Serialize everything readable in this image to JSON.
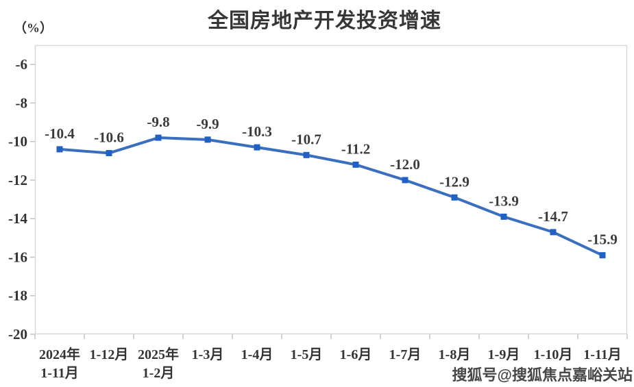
{
  "header": {
    "title": "全国房地产开发投资增速",
    "unit_label": "（%）"
  },
  "chart": {
    "colors": {
      "line": "#3a6fc0",
      "marker": "#2160c4",
      "axis_border": "#d6d6d6",
      "tick_mark": "#bfbfbf",
      "label_text": "#333333"
    }
  },
  "chart_data": {
    "type": "line",
    "title": "全国房地产开发投资增速",
    "ylabel": "（%）",
    "xlabel": "",
    "categories": [
      "2024年\n1-11月",
      "1-12月",
      "2025年\n1-2月",
      "1-3月",
      "1-4月",
      "1-5月",
      "1-6月",
      "1-7月",
      "1-8月",
      "1-9月",
      "1-10月",
      "1-11月"
    ],
    "values": [
      -10.4,
      -10.6,
      -9.8,
      -9.9,
      -10.3,
      -10.7,
      -11.2,
      -12.0,
      -12.9,
      -13.9,
      -14.7,
      -15.9
    ],
    "data_labels": [
      "-10.4",
      "-10.6",
      "-9.8",
      "-9.9",
      "-10.3",
      "-10.7",
      "-11.2",
      "-12.0",
      "-12.9",
      "-13.9",
      "-14.7",
      "-15.9"
    ],
    "ylim": [
      -20,
      -5
    ],
    "yticks": [
      -6,
      -8,
      -10,
      -12,
      -14,
      -16,
      -18,
      -20
    ],
    "grid": false,
    "legend_position": "none",
    "marker": "square",
    "series_name": "全国房地产开发投资增速"
  },
  "watermark": {
    "text": "搜狐号@搜狐焦点嘉峪关站"
  }
}
